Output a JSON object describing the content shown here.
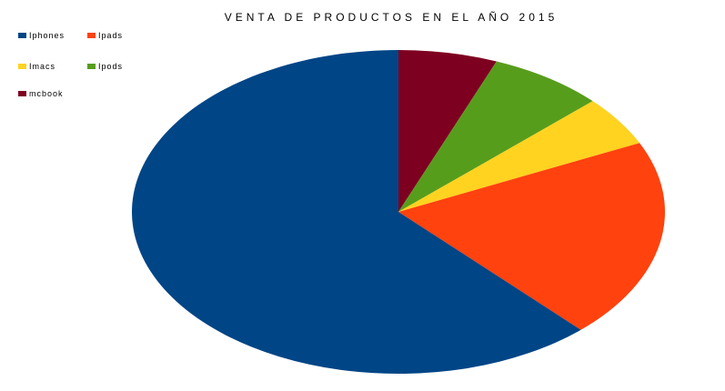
{
  "chart_data": {
    "type": "pie",
    "title": "VENTA DE PRODUCTOS EN EL AÑO 2015",
    "legend_position": "top-left",
    "categories": [
      "Iphones",
      "Ipads",
      "Imacs",
      "Ipods",
      "mcbook"
    ],
    "values": [
      62,
      20,
      5,
      7,
      6
    ],
    "colors": [
      "#004586",
      "#ff420e",
      "#ffd320",
      "#579d1c",
      "#7e0021"
    ]
  }
}
